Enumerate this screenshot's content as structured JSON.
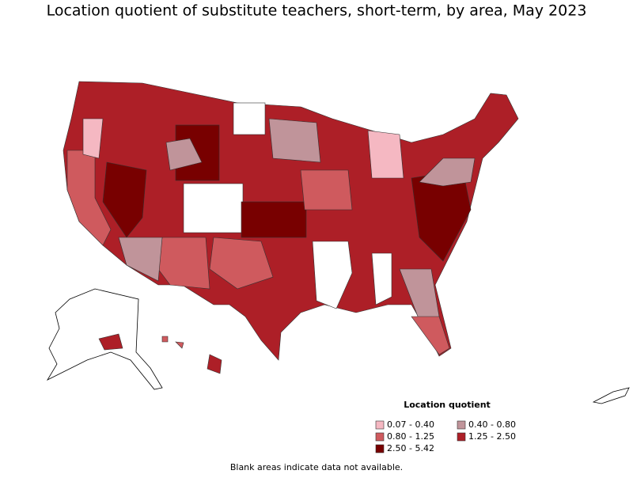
{
  "title": "Location quotient of substitute teachers, short-term, by area, May 2023",
  "legend": {
    "title": "Location quotient",
    "items": [
      {
        "label": "0.07 - 0.40",
        "color": "#f5b8c2"
      },
      {
        "label": "0.40 - 0.80",
        "color": "#c0949a"
      },
      {
        "label": "0.80 - 1.25",
        "color": "#cf5a5e"
      },
      {
        "label": "1.25 - 2.50",
        "color": "#ad1f27"
      },
      {
        "label": "2.50 - 5.42",
        "color": "#780000"
      }
    ]
  },
  "footnote": "Blank areas indicate data not available."
}
